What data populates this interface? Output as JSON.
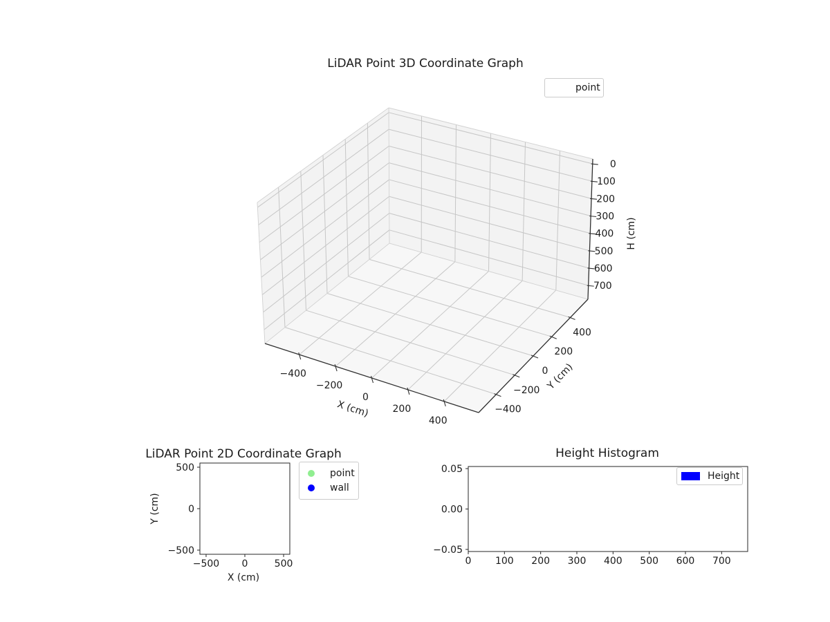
{
  "chart_data": [
    {
      "type": "scatter3d",
      "title": "LiDAR Point 3D Coordinate Graph",
      "xlabel": "X (cm)",
      "ylabel": "Y (cm)",
      "zlabel": "H (cm)",
      "xticks": {
        "values": [
          -400,
          -200,
          0,
          200,
          400
        ],
        "labels": [
          "−400",
          "−200",
          "0",
          "200",
          "400"
        ]
      },
      "yticks": {
        "values": [
          -400,
          -200,
          0,
          200,
          400
        ],
        "labels": [
          "−400",
          "−200",
          "0",
          "200",
          "400"
        ]
      },
      "zticks": {
        "values": [
          0,
          100,
          200,
          300,
          400,
          500,
          600,
          700
        ],
        "labels": [
          "0",
          "100",
          "200",
          "300",
          "400",
          "500",
          "600",
          "700"
        ]
      },
      "zaxis_inverted": true,
      "grid": true,
      "legend": [
        {
          "label": "point",
          "marker": "none"
        }
      ],
      "series": [
        {
          "name": "point",
          "points": []
        }
      ]
    },
    {
      "type": "scatter",
      "title": "LiDAR Point 2D Coordinate Graph",
      "xlabel": "X (cm)",
      "ylabel": "Y (cm)",
      "xticks": {
        "values": [
          -500,
          0,
          500
        ],
        "labels": [
          "−500",
          "0",
          "500"
        ]
      },
      "yticks": {
        "values": [
          500,
          0,
          -500
        ],
        "labels": [
          "500",
          "0",
          "−500"
        ]
      },
      "grid": false,
      "legend": [
        {
          "label": "point",
          "color": "#90EE90"
        },
        {
          "label": "wall",
          "color": "#0000FF"
        }
      ],
      "series": [
        {
          "name": "point",
          "points": []
        },
        {
          "name": "wall",
          "points": []
        }
      ]
    },
    {
      "type": "bar",
      "title": "Height Histogram",
      "xticks": {
        "values": [
          0,
          100,
          200,
          300,
          400,
          500,
          600,
          700
        ],
        "labels": [
          "0",
          "100",
          "200",
          "300",
          "400",
          "500",
          "600",
          "700"
        ]
      },
      "yticks": {
        "values": [
          0.05,
          0,
          -0.05
        ],
        "labels": [
          "0.05",
          "0.00",
          "−0.05"
        ]
      },
      "grid": false,
      "legend": [
        {
          "label": "Height",
          "color": "#0000FF"
        }
      ],
      "values": []
    }
  ],
  "colors": {
    "point_marker": "#90EE90",
    "wall_marker": "#0000FF",
    "height_patch": "#0000FF",
    "axis_line": "#2f2f2f",
    "grid_line": "#c6c6c6",
    "pane_wall": "#f3f3f3",
    "pane_floor": "#f7f7f7"
  }
}
